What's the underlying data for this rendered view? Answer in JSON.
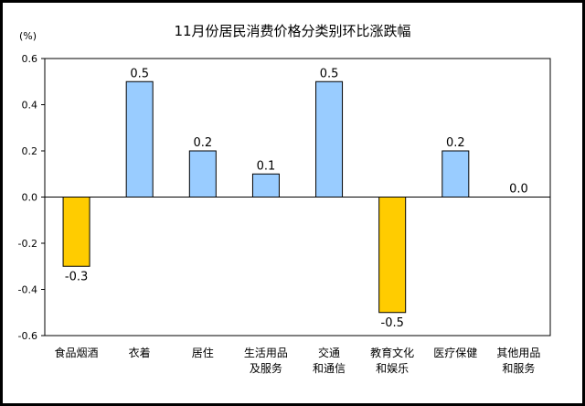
{
  "chart_data": {
    "type": "bar",
    "title": "11月份居民消费价格分类别环比涨跌幅",
    "ylabel": "(%)",
    "xlabel": "",
    "ylim": [
      -0.6,
      0.6
    ],
    "yticks": [
      "0.6",
      "0.4",
      "0.2",
      "0.0",
      "-0.2",
      "-0.4",
      "-0.6"
    ],
    "ytick_values": [
      0.6,
      0.4,
      0.2,
      0.0,
      -0.2,
      -0.4,
      -0.6
    ],
    "grid": false,
    "legend": "none",
    "categories": [
      [
        "食品烟酒"
      ],
      [
        "衣着"
      ],
      [
        "居住"
      ],
      [
        "生活用品",
        "及服务"
      ],
      [
        "交通",
        "和通信"
      ],
      [
        "教育文化",
        "和娱乐"
      ],
      [
        "医疗保健"
      ],
      [
        "其他用品",
        "和服务"
      ]
    ],
    "values": [
      -0.3,
      0.5,
      0.2,
      0.1,
      0.5,
      -0.5,
      0.2,
      0.0
    ],
    "value_labels": [
      "-0.3",
      "0.5",
      "0.2",
      "0.1",
      "0.5",
      "-0.5",
      "0.2",
      "0.0"
    ],
    "colors": {
      "positive": "#99CCFF",
      "negative": "#FFCC00",
      "outline": "#000000"
    }
  }
}
